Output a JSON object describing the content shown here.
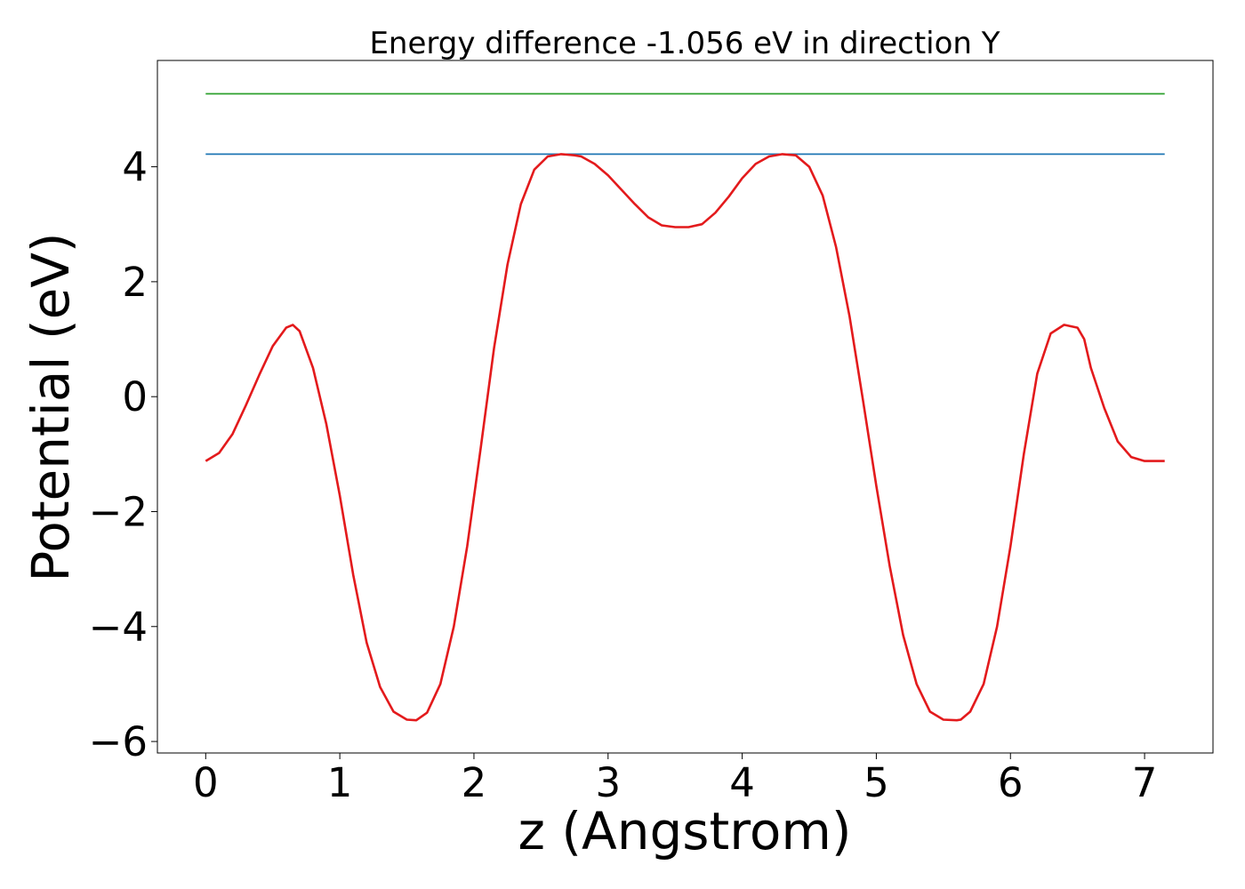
{
  "chart_data": {
    "type": "line",
    "title": "Energy difference -1.056 eV in direction Y",
    "xlabel": "z (Angstrom)",
    "ylabel": "Potential (eV)",
    "xlim": [
      -0.36,
      7.51
    ],
    "ylim": [
      -6.2,
      5.85
    ],
    "xticks": [
      0,
      1,
      2,
      3,
      4,
      5,
      6,
      7
    ],
    "xtick_labels": [
      "0",
      "1",
      "2",
      "3",
      "4",
      "5",
      "6",
      "7"
    ],
    "yticks": [
      -6,
      -4,
      -2,
      0,
      2,
      4
    ],
    "ytick_labels": [
      "−6",
      "−4",
      "−2",
      "0",
      "2",
      "4"
    ],
    "grid": false,
    "legend": "none",
    "series": [
      {
        "color": "#2ca02c",
        "x": [
          0,
          7.15
        ],
        "y": [
          5.27,
          5.27
        ]
      },
      {
        "color": "#1f77b4",
        "x": [
          0,
          7.15
        ],
        "y": [
          4.22,
          4.22
        ]
      },
      {
        "color": "#e31a1c",
        "x": [
          0,
          0.1,
          0.2,
          0.3,
          0.4,
          0.5,
          0.6,
          0.65,
          0.7,
          0.8,
          0.9,
          1.0,
          1.1,
          1.2,
          1.3,
          1.4,
          1.5,
          1.57,
          1.65,
          1.75,
          1.85,
          1.95,
          2.05,
          2.15,
          2.25,
          2.35,
          2.45,
          2.55,
          2.65,
          2.75,
          2.8,
          2.9,
          3.0,
          3.1,
          3.2,
          3.3,
          3.4,
          3.5,
          3.6,
          3.7,
          3.8,
          3.9,
          4.0,
          4.1,
          4.2,
          4.3,
          4.4,
          4.5,
          4.6,
          4.7,
          4.8,
          4.9,
          5.0,
          5.1,
          5.2,
          5.3,
          5.4,
          5.5,
          5.6,
          5.63,
          5.7,
          5.8,
          5.9,
          6.0,
          6.1,
          6.2,
          6.3,
          6.4,
          6.5,
          6.55,
          6.6,
          6.7,
          6.8,
          6.9,
          7.0,
          7.1,
          7.15
        ],
        "y": [
          -1.12,
          -0.98,
          -0.65,
          -0.15,
          0.38,
          0.88,
          1.2,
          1.25,
          1.14,
          0.5,
          -0.48,
          -1.72,
          -3.1,
          -4.28,
          -5.05,
          -5.48,
          -5.62,
          -5.63,
          -5.5,
          -5.0,
          -4.0,
          -2.6,
          -0.9,
          0.85,
          2.3,
          3.35,
          3.95,
          4.18,
          4.22,
          4.2,
          4.18,
          4.05,
          3.85,
          3.6,
          3.35,
          3.12,
          2.98,
          2.95,
          2.95,
          3.0,
          3.2,
          3.48,
          3.8,
          4.05,
          4.18,
          4.22,
          4.2,
          4.0,
          3.5,
          2.6,
          1.4,
          -0.05,
          -1.55,
          -2.95,
          -4.15,
          -5.0,
          -5.48,
          -5.62,
          -5.63,
          -5.62,
          -5.48,
          -5.0,
          -4.0,
          -2.6,
          -1.0,
          0.4,
          1.1,
          1.25,
          1.2,
          1.0,
          0.5,
          -0.2,
          -0.78,
          -1.05,
          -1.12,
          -1.12,
          -1.12
        ]
      }
    ]
  }
}
